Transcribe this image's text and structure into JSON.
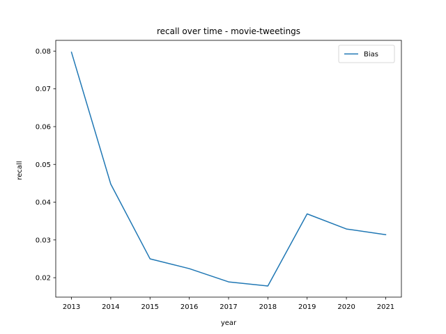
{
  "chart_data": {
    "type": "line",
    "title": "recall over time - movie-tweetings",
    "xlabel": "year",
    "ylabel": "recall",
    "x": [
      2013,
      2014,
      2015,
      2016,
      2017,
      2018,
      2019,
      2020,
      2021
    ],
    "series": [
      {
        "name": "Bias",
        "color": "#1f77b4",
        "values": [
          0.0797,
          0.0448,
          0.025,
          0.0224,
          0.0189,
          0.0178,
          0.0369,
          0.0329,
          0.0314
        ]
      }
    ],
    "xlim": [
      2012.6,
      2021.4
    ],
    "ylim": [
      0.01486,
      0.08284
    ],
    "xticks": [
      "2013",
      "2014",
      "2015",
      "2016",
      "2017",
      "2018",
      "2019",
      "2020",
      "2021"
    ],
    "yticks": [
      0.02,
      0.03,
      0.04,
      0.05,
      0.06,
      0.07,
      0.08
    ],
    "ytick_labels": [
      "0.02",
      "0.03",
      "0.04",
      "0.05",
      "0.06",
      "0.07",
      "0.08"
    ],
    "grid": false,
    "legend": "top-right"
  }
}
